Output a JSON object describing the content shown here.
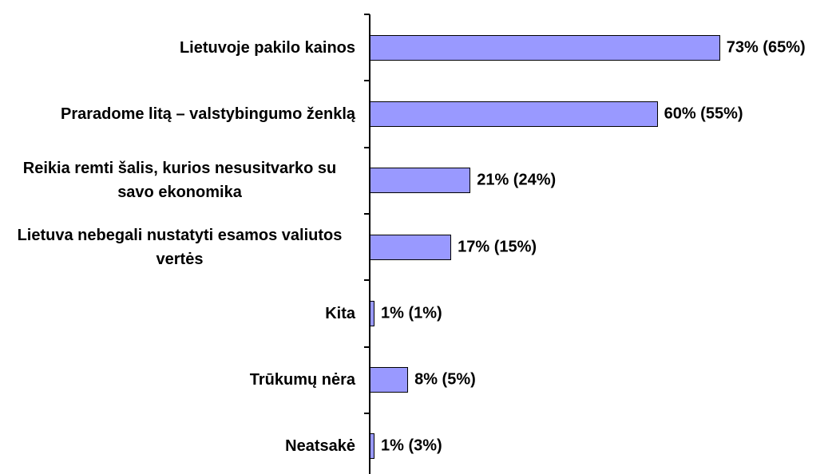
{
  "chart_data": {
    "type": "bar",
    "orientation": "horizontal",
    "categories": [
      "Lietuvoje pakilo kainos",
      "Praradome litą – valstybingumo ženklą",
      "Reikia remti šalis, kurios nesusitvarko su savo ekonomika",
      "Lietuva nebegali nustatyti esamos valiutos vertės",
      "Kita",
      "Trūkumų nėra",
      "Neatsakė"
    ],
    "values": [
      73,
      60,
      21,
      17,
      1,
      8,
      1
    ],
    "value_labels": [
      "73% (65%)",
      "60% (55%)",
      "21% (24%)",
      "17% (15%)",
      "1% (1%)",
      "8% (5%)",
      "1% (3%)"
    ],
    "color": "#9999ff"
  }
}
